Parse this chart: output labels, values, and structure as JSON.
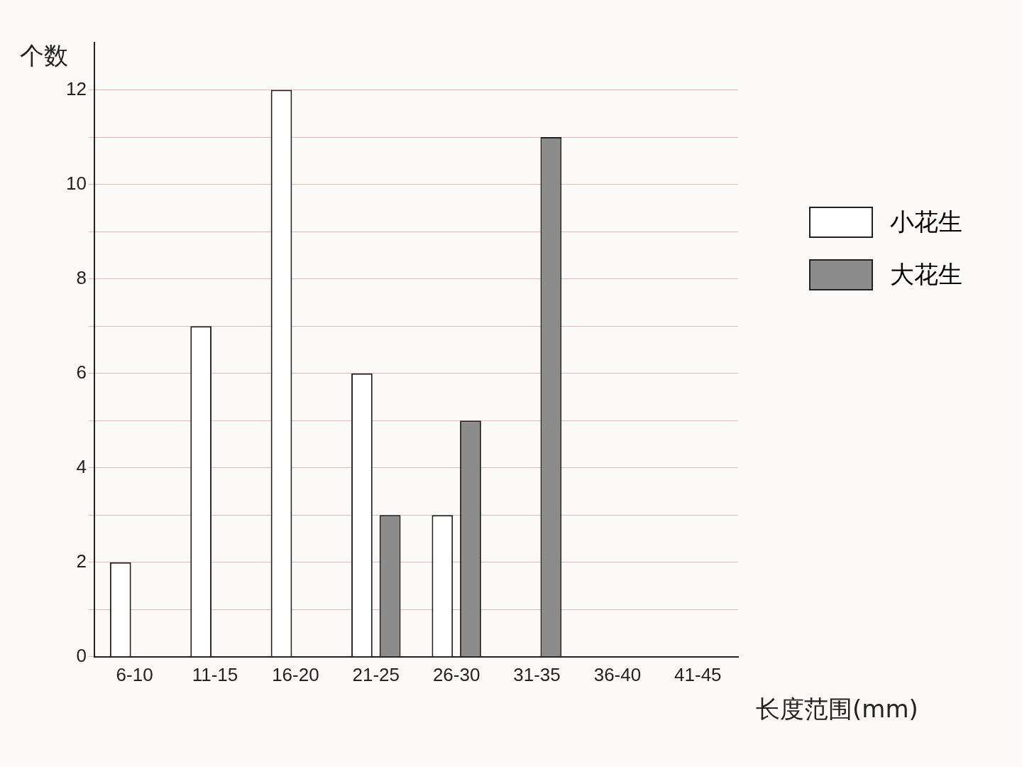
{
  "chart_data": {
    "type": "bar",
    "xlabel": "长度范围(mm)",
    "ylabel": "个数",
    "categories": [
      "6-10",
      "11-15",
      "16-20",
      "21-25",
      "26-30",
      "31-35",
      "36-40",
      "41-45"
    ],
    "series": [
      {
        "name": "小花生",
        "color": "#ffffff",
        "values": [
          2,
          7,
          12,
          6,
          3,
          0,
          0,
          0
        ]
      },
      {
        "name": "大花生",
        "color": "#8c8c8c",
        "values": [
          0,
          0,
          0,
          3,
          5,
          11,
          0,
          0
        ]
      }
    ],
    "ylim": [
      0,
      13
    ],
    "yticks": [
      0,
      {
        "value": 1,
        "label": null
      },
      2,
      {
        "value": 3,
        "label": null
      },
      4,
      {
        "value": 5,
        "label": null
      },
      6,
      {
        "value": 7,
        "label": null
      },
      8,
      {
        "value": 9,
        "label": null
      },
      10,
      {
        "value": 11,
        "label": null
      },
      12
    ],
    "grid": "y",
    "legend": "right"
  }
}
